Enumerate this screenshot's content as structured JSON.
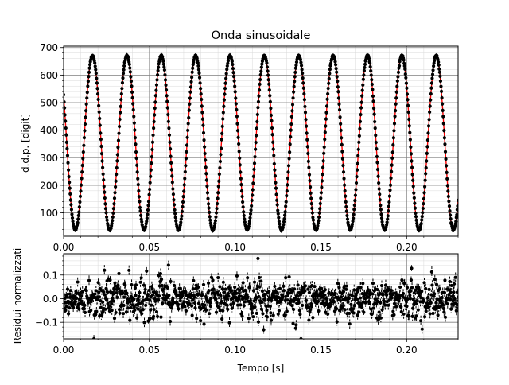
{
  "chart_data": [
    {
      "type": "scatter",
      "title": "Onda sinusoidale",
      "xlabel": "",
      "ylabel": "d.d.p. [digit]",
      "xlim": [
        0.0,
        0.23
      ],
      "ylim": [
        15,
        705
      ],
      "xticks": [
        "0.00",
        "0.05",
        "0.10",
        "0.15",
        "0.20"
      ],
      "yticks": [
        "100",
        "200",
        "300",
        "400",
        "500",
        "600",
        "700"
      ],
      "grid": true,
      "point_color": "#000000",
      "fit_color": "#ff0000",
      "series": [
        {
          "style": "data-points-with-errorbars",
          "model": "sine",
          "amplitude": 317,
          "offset": 354,
          "frequency_hz": 49.9,
          "phase_rad": 1.0,
          "x_start": 0.0,
          "x_end": 0.23,
          "n_points": 900
        },
        {
          "style": "fit-line",
          "model": "sine",
          "amplitude": 317,
          "offset": 354,
          "frequency_hz": 49.9,
          "phase_rad": 1.0
        }
      ]
    },
    {
      "type": "scatter",
      "title": "",
      "xlabel": "Tempo [s]",
      "ylabel": "Residui normalizzati",
      "xlim": [
        0.0,
        0.23
      ],
      "ylim": [
        -0.17,
        0.19
      ],
      "xticks": [
        "0.00",
        "0.05",
        "0.10",
        "0.15",
        "0.20"
      ],
      "yticks": [
        "−0.1",
        "0.0",
        "0.1"
      ],
      "grid": true,
      "point_color": "#000000",
      "series": [
        {
          "style": "residual-points-with-errorbars",
          "typical_spread": 0.04,
          "max_abs": 0.17
        }
      ]
    }
  ]
}
